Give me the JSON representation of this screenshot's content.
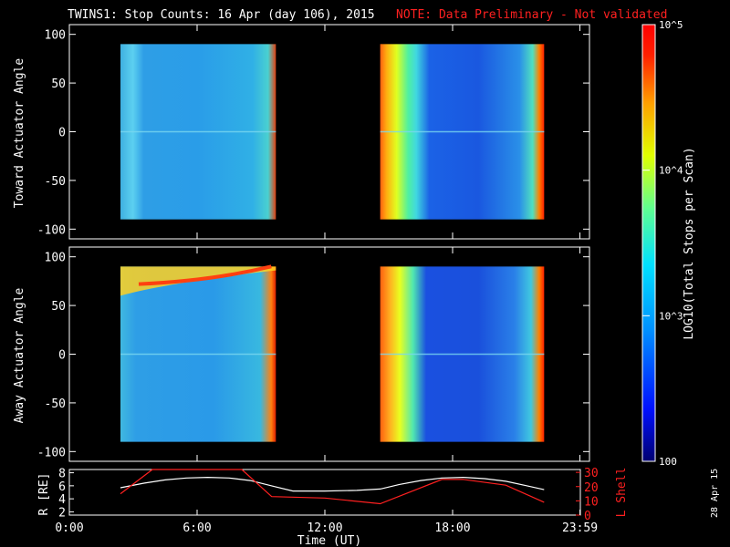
{
  "header": {
    "title": "TWINS1: Stop Counts: 16 Apr (day 106), 2015",
    "note": "NOTE: Data Preliminary - Not validated"
  },
  "footer": {
    "generated": "28 Apr 15"
  },
  "colors": {
    "background": "#000000",
    "axes": "#ffffff",
    "note": "#ff2020",
    "r_line": "#ffffff",
    "l_shell_line": "#ff2020"
  },
  "chart_data": [
    {
      "type": "heatmap",
      "name": "toward-panel",
      "ylabel": "Toward Actuator Angle",
      "xlim_hours": [
        0,
        24
      ],
      "ylim": [
        -110,
        110
      ],
      "yticks": [
        100,
        50,
        0,
        -50,
        -100
      ],
      "colorscale_label": "LOG10(Total Stops per Scan)",
      "coverage_intervals_hours": [
        [
          2.4,
          9.7
        ],
        [
          14.6,
          22.3
        ]
      ]
    },
    {
      "type": "heatmap",
      "name": "away-panel",
      "ylabel": "Away Actuator Angle",
      "xlim_hours": [
        0,
        24
      ],
      "ylim": [
        -110,
        110
      ],
      "yticks": [
        100,
        50,
        0,
        -50,
        -100
      ],
      "coverage_intervals_hours": [
        [
          2.4,
          9.7
        ],
        [
          14.6,
          22.3
        ]
      ]
    },
    {
      "type": "line",
      "name": "ephemeris-panel",
      "xlabel": "Time (UT)",
      "xticks": [
        "0:00",
        "6:00",
        "12:00",
        "18:00",
        "23:59"
      ],
      "xtick_hours": [
        0,
        6,
        12,
        18,
        23.98
      ],
      "left_axis": {
        "label": "R [RE]",
        "ylim": [
          1.5,
          8.5
        ],
        "ticks": [
          2,
          4,
          6,
          8
        ]
      },
      "right_axis": {
        "label": "L Shell",
        "ylim": [
          0,
          32
        ],
        "ticks": [
          0,
          10,
          20,
          30
        ]
      },
      "series": [
        {
          "name": "R [RE]",
          "axis": "left",
          "x": [
            2.4,
            3.5,
            4.5,
            5.5,
            6.5,
            7.5,
            8.5,
            9.5,
            10.5,
            12,
            13.5,
            14.6,
            15.5,
            16.5,
            17.5,
            18.5,
            19.5,
            20.5,
            21.5,
            22.3
          ],
          "y": [
            5.7,
            6.4,
            6.9,
            7.2,
            7.3,
            7.2,
            6.8,
            6.0,
            5.2,
            5.2,
            5.3,
            5.5,
            6.2,
            6.8,
            7.2,
            7.3,
            7.1,
            6.7,
            6.0,
            5.4
          ]
        },
        {
          "name": "L Shell",
          "axis": "right",
          "x": [
            2.4,
            3.9,
            8.1,
            9.5,
            12,
            14.6,
            17.5,
            18.5,
            20.5,
            22.3
          ],
          "y": [
            15,
            32,
            32,
            13,
            12,
            8,
            25,
            25,
            21,
            9
          ]
        }
      ]
    },
    {
      "type": "heatmap",
      "name": "colorbar",
      "label": "LOG10(Total Stops per Scan)",
      "scale": "log",
      "range": [
        100,
        100000
      ],
      "ticks": [
        "10^5",
        "10^4",
        "10^3",
        "100"
      ],
      "colormap": [
        "#000080",
        "#0000ff",
        "#0080ff",
        "#00ffff",
        "#80ff80",
        "#ffff00",
        "#ff8000",
        "#ff0000"
      ]
    }
  ]
}
